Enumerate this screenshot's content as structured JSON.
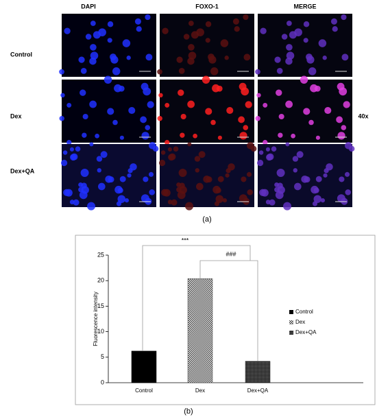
{
  "panel": {
    "columns": [
      "DAPI",
      "FOXO-1",
      "MERGE"
    ],
    "rows": [
      "Control",
      "Dex",
      "Dex+QA"
    ],
    "magnification": "40x",
    "label": "(a)"
  },
  "chart_data": {
    "type": "bar",
    "label": "(b)",
    "ylabel": "Fluorescence intensity",
    "categories": [
      "Control",
      "Dex",
      "Dex+QA"
    ],
    "values": [
      6.2,
      20.4,
      4.2
    ],
    "colors": [
      "#000000",
      "#444444",
      "#222222"
    ],
    "ylim": [
      0,
      25
    ],
    "yticks": [
      0,
      5,
      10,
      15,
      20,
      25
    ],
    "legend": "right",
    "annotations": [
      "***",
      "###"
    ]
  }
}
